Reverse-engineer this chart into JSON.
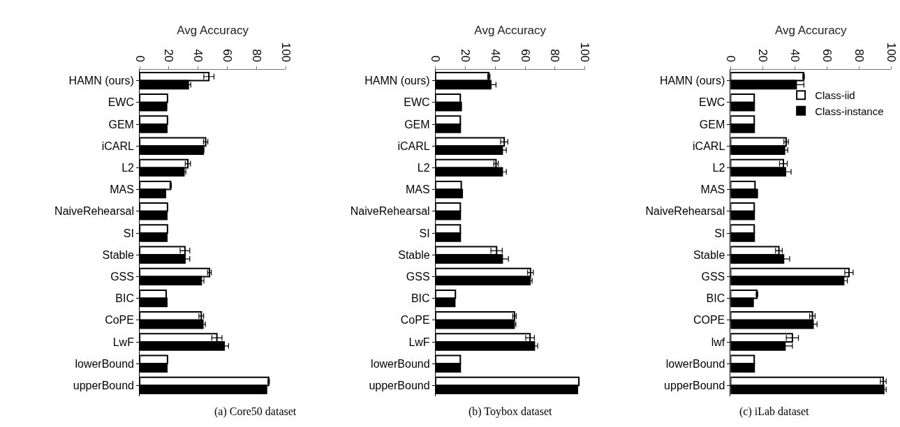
{
  "chart_data": [
    {
      "type": "bar",
      "orientation": "horizontal",
      "title": "(a) Core50 dataset",
      "xlabel": "Avg Accuracy",
      "xlim": [
        0,
        100
      ],
      "xticks": [
        0,
        20,
        40,
        60,
        80,
        100
      ],
      "legend": false,
      "categories": [
        "HAMN (ours)",
        "EWC",
        "GEM",
        "iCARL",
        "L2",
        "MAS",
        "NaiveRehearsal",
        "SI",
        "Stable",
        "GSS",
        "BIC",
        "CoPE",
        "LwF",
        "lowerBound",
        "upperBound"
      ],
      "series": [
        {
          "color": "#ffffff",
          "values": [
            47.4,
            19,
            19,
            45.2,
            33,
            21.2,
            19,
            19,
            31,
            47.8,
            18.1,
            42.2,
            52.9,
            19,
            88.4
          ],
          "errors": [
            3.5,
            null,
            null,
            1.5,
            1.8,
            0.5,
            null,
            null,
            3.3,
            1.3,
            null,
            1.6,
            3.5,
            null,
            0.5
          ]
        },
        {
          "color": "#000000",
          "values": [
            33.3,
            18.4,
            18.6,
            43.6,
            30.3,
            17.6,
            18.6,
            18.6,
            31,
            42.2,
            18.6,
            43.3,
            57.9,
            18.6,
            86.9
          ],
          "errors": [
            1.7,
            null,
            null,
            0.4,
            1.3,
            null,
            null,
            null,
            3.3,
            1.8,
            null,
            1.7,
            3,
            null,
            null
          ]
        }
      ]
    },
    {
      "type": "bar",
      "orientation": "horizontal",
      "title": "(b) Toybox dataset",
      "xlabel": "Avg Accuracy",
      "xlim": [
        0,
        100
      ],
      "xticks": [
        0,
        20,
        40,
        60,
        80,
        100
      ],
      "legend": false,
      "categories": [
        "HAMN (ours)",
        "EWC",
        "GEM",
        "iCARL",
        "L2",
        "MAS",
        "NaiveRehearsal",
        "SI",
        "Stable",
        "GSS",
        "BIC",
        "CoPE",
        "LwF",
        "lowerBound",
        "upperBound"
      ],
      "series": [
        {
          "color": "#ffffff",
          "values": [
            35.7,
            16.6,
            16.6,
            46,
            40.5,
            17.2,
            16.6,
            16.6,
            40.9,
            63.6,
            13.3,
            52.9,
            63.3,
            16.6,
            96
          ],
          "errors": [
            0.8,
            null,
            null,
            2.4,
            1.5,
            null,
            null,
            null,
            3.8,
            1.9,
            null,
            1.2,
            2.9,
            null,
            null
          ]
        },
        {
          "color": "#000000",
          "values": [
            37,
            17.2,
            16.6,
            44.7,
            44.7,
            17.9,
            16.6,
            16.6,
            44.7,
            63.3,
            12.9,
            52.6,
            66.2,
            16.6,
            95
          ],
          "errors": [
            3.5,
            null,
            null,
            2.7,
            2.7,
            null,
            null,
            null,
            4.1,
            1.4,
            null,
            1.2,
            2.2,
            null,
            null
          ]
        }
      ]
    },
    {
      "type": "bar",
      "orientation": "horizontal",
      "title": "(c) iLab dataset",
      "xlabel": "Avg Accuracy",
      "xlim": [
        0,
        100
      ],
      "xticks": [
        0,
        20,
        40,
        60,
        80,
        100
      ],
      "legend": "top right",
      "categories": [
        "HAMN (ours)",
        "EWC",
        "GEM",
        "iCARL",
        "L2",
        "MAS",
        "NaiveRehearsal",
        "SI",
        "Stable",
        "GSS",
        "BIC",
        "COPE",
        "lwf",
        "lowerBound",
        "upperBound"
      ],
      "series": [
        {
          "name": "Class-iid",
          "color": "#ffffff",
          "values": [
            45.5,
            14.7,
            14.7,
            34.6,
            32.9,
            15.2,
            14.7,
            14.7,
            30.1,
            73.8,
            16.4,
            51,
            38.5,
            14.7,
            95.2
          ],
          "errors": [
            0.5,
            null,
            null,
            1.4,
            2.4,
            null,
            null,
            null,
            2.1,
            2.6,
            0.5,
            1.7,
            3.8,
            null,
            1.8
          ]
        },
        {
          "name": "Class-instance",
          "color": "#000000",
          "values": [
            40.9,
            14.7,
            14.7,
            33.6,
            34.2,
            16.6,
            14.7,
            14.7,
            33,
            70.5,
            14,
            51.4,
            33.9,
            14.7,
            95.5
          ],
          "errors": [
            4.8,
            null,
            null,
            2,
            3.5,
            null,
            null,
            null,
            3.8,
            2.3,
            null,
            2.5,
            4.6,
            null,
            1.5
          ]
        }
      ]
    }
  ]
}
